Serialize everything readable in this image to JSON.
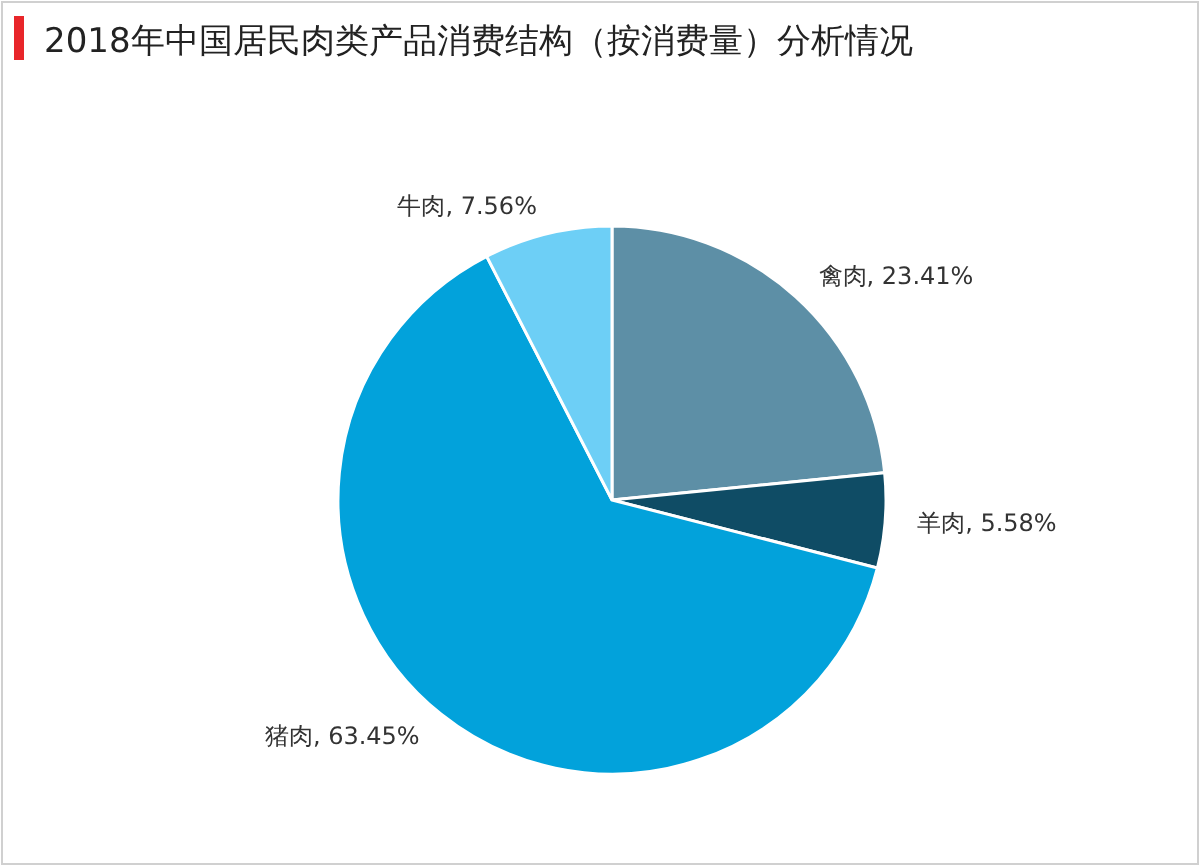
{
  "chart_data": {
    "type": "pie",
    "title": "2018年中国居民肉类产品消费结构（按消费量）分析情况",
    "categories": [
      "禽肉",
      "羊肉",
      "猪肉",
      "牛肉"
    ],
    "values": [
      23.41,
      5.58,
      63.45,
      7.56
    ],
    "value_labels": [
      "23.41%",
      "5.58%",
      "63.45%",
      "7.56%"
    ],
    "colors": [
      "#5d8fa6",
      "#0f4c65",
      "#02a2db",
      "#6dcff6"
    ]
  }
}
